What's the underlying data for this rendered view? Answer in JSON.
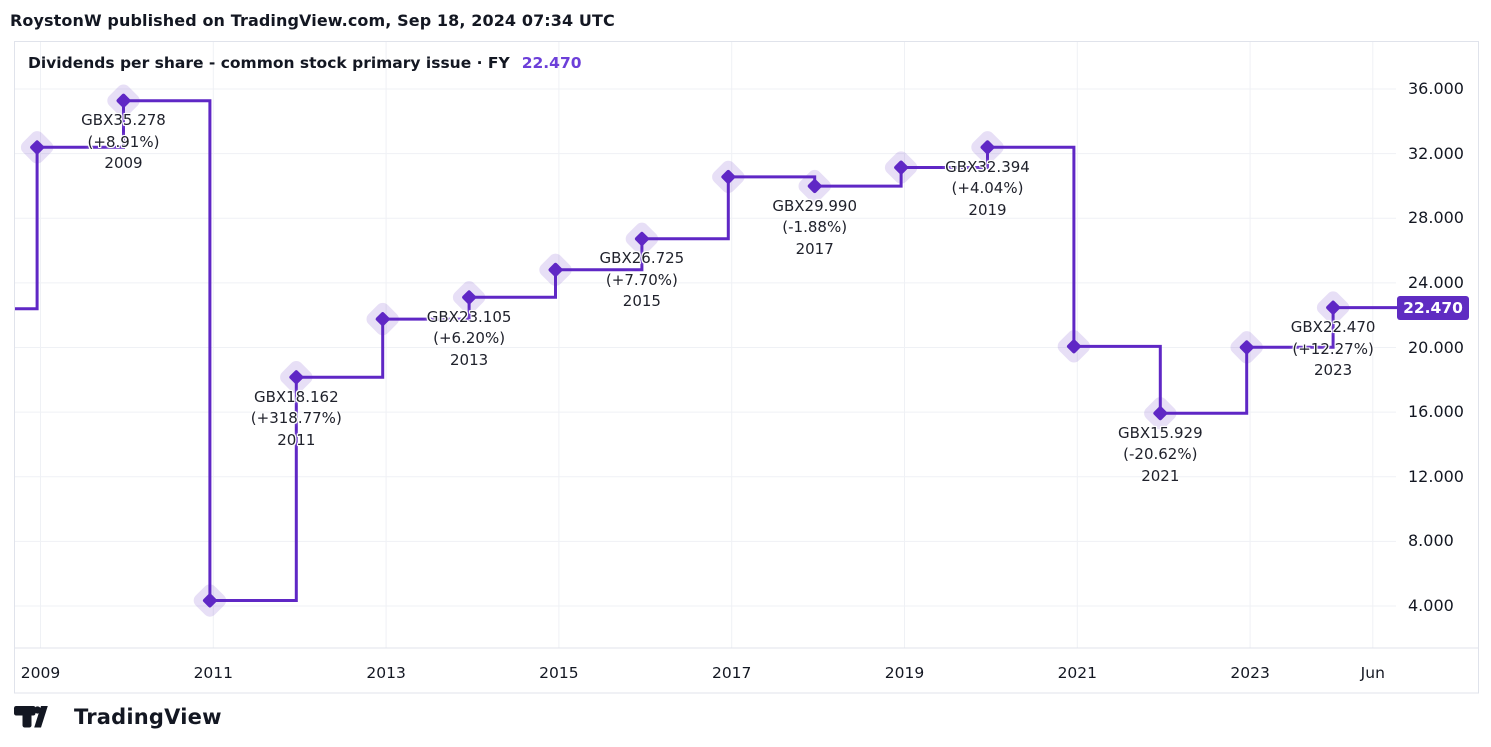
{
  "header": {
    "text": "RoystonW published on TradingView.com, Sep 18, 2024 07:34 UTC"
  },
  "title": {
    "text": "Dividends per share - common stock primary issue · FY",
    "value": "22.470"
  },
  "watermark": {
    "brand": "TradingView"
  },
  "colors": {
    "accent": "#5F27C5",
    "title_value": "#6C3FD9",
    "badge_bg": "#5F2CC2",
    "badge_text": "#ffffff",
    "halo": "rgba(95,39,197,0.15)",
    "grid": "#eff1f5",
    "border": "#e0e3eb",
    "text_dark": "#131722",
    "label_text": "#20222c"
  },
  "chart_data": {
    "type": "line",
    "line_style": "step",
    "marker": "diamond",
    "title": "Dividends per share - common stock primary issue · FY",
    "unit": "GBX",
    "grid": true,
    "legend": "none",
    "ylim_visible": [
      1.4,
      39.0
    ],
    "left_edge_value": 22.4,
    "points": [
      {
        "year": 2007,
        "value": 22.4,
        "estimated": true,
        "offscreen": true
      },
      {
        "year": 2008,
        "value": 32.39,
        "estimated": true
      },
      {
        "year": 2009,
        "value": 35.278,
        "label": {
          "price": "GBX35.278",
          "change": "(+8.91%)",
          "year": "2009"
        }
      },
      {
        "year": 2010,
        "value": 4.34,
        "estimated": true
      },
      {
        "year": 2011,
        "value": 18.162,
        "label": {
          "price": "GBX18.162",
          "change": "(+318.77%)",
          "year": "2011"
        }
      },
      {
        "year": 2012,
        "value": 21.76,
        "estimated": true
      },
      {
        "year": 2013,
        "value": 23.105,
        "label": {
          "price": "GBX23.105",
          "change": "(+6.20%)",
          "year": "2013"
        }
      },
      {
        "year": 2014,
        "value": 24.81,
        "estimated": true
      },
      {
        "year": 2015,
        "value": 26.725,
        "label": {
          "price": "GBX26.725",
          "change": "(+7.70%)",
          "year": "2015"
        }
      },
      {
        "year": 2016,
        "value": 30.56,
        "estimated": true
      },
      {
        "year": 2017,
        "value": 29.99,
        "label": {
          "price": "GBX29.990",
          "change": "(-1.88%)",
          "year": "2017"
        }
      },
      {
        "year": 2018,
        "value": 31.14,
        "estimated": true
      },
      {
        "year": 2019,
        "value": 32.394,
        "label": {
          "price": "GBX32.394",
          "change": "(+4.04%)",
          "year": "2019"
        }
      },
      {
        "year": 2020,
        "value": 20.07,
        "estimated": true
      },
      {
        "year": 2021,
        "value": 15.929,
        "label": {
          "price": "GBX15.929",
          "change": "(-20.62%)",
          "year": "2021"
        }
      },
      {
        "year": 2022,
        "value": 20.01,
        "estimated": true
      },
      {
        "year": 2023,
        "value": 22.47,
        "label": {
          "price": "GBX22.470",
          "change": "(+12.27%)",
          "year": "2023"
        }
      }
    ],
    "x_ticks": [
      {
        "year": 2009,
        "label": "2009"
      },
      {
        "year": 2011,
        "label": "2011"
      },
      {
        "year": 2013,
        "label": "2013"
      },
      {
        "year": 2015,
        "label": "2015"
      },
      {
        "year": 2017,
        "label": "2017"
      },
      {
        "year": 2019,
        "label": "2019"
      },
      {
        "year": 2021,
        "label": "2021"
      },
      {
        "year": 2023,
        "label": "2023"
      },
      {
        "year": 2024.42,
        "label": "Jun"
      }
    ],
    "y_ticks": [
      {
        "value": 36,
        "label": "36.000"
      },
      {
        "value": 32,
        "label": "32.000"
      },
      {
        "value": 28,
        "label": "28.000"
      },
      {
        "value": 24,
        "label": "24.000"
      },
      {
        "value": 20,
        "label": "20.000"
      },
      {
        "value": 16,
        "label": "16.000"
      },
      {
        "value": 12,
        "label": "12.000"
      },
      {
        "value": 8,
        "label": "8.000"
      },
      {
        "value": 4,
        "label": "4.000"
      }
    ],
    "last_price": {
      "value": 22.47,
      "label": "22.470"
    }
  }
}
